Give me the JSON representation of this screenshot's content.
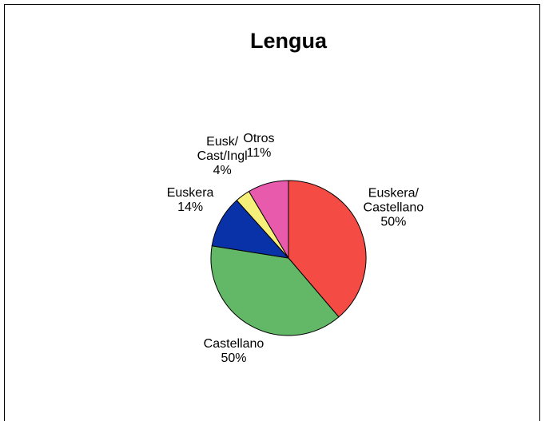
{
  "chart_data": {
    "type": "pie",
    "title": "Lengua",
    "categories": [
      "Euskera/Castellano",
      "Castellano",
      "Euskera",
      "Eusk/Cast/Ingl",
      "Otros"
    ],
    "values": [
      50,
      50,
      14,
      4,
      11
    ],
    "value_labels": [
      "50%",
      "50%",
      "14%",
      "4%",
      "11%"
    ],
    "colors": [
      "#f44b45",
      "#62b866",
      "#0a32a8",
      "#f6f07a",
      "#e85aab"
    ]
  }
}
